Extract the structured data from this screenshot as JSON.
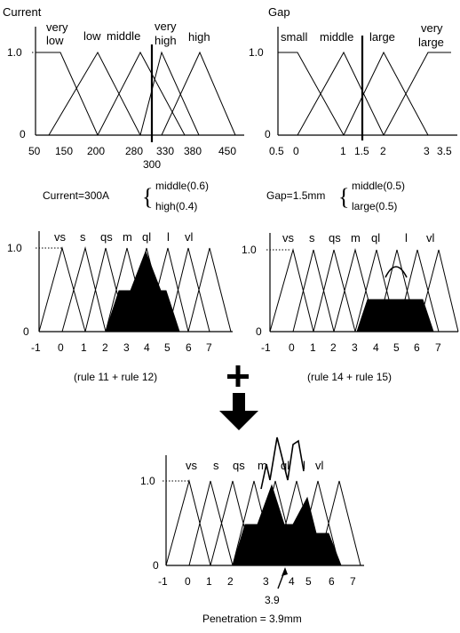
{
  "current_chart": {
    "title": "Current",
    "y_ticks": [
      "1.0",
      "0"
    ],
    "x_ticks": [
      "50",
      "150",
      "200",
      "280",
      "330",
      "380",
      "450"
    ],
    "x_extra_tick": "300",
    "terms": [
      "very low",
      "low",
      "middle",
      "very high",
      "high"
    ],
    "input_value": 300
  },
  "gap_chart": {
    "title": "Gap",
    "y_ticks": [
      "1.0",
      "0"
    ],
    "x_ticks": [
      "0.5",
      "0",
      "1",
      "1.5",
      "2",
      "3",
      "3.5"
    ],
    "terms": [
      "small",
      "middle",
      "large",
      "very large"
    ],
    "input_value": 1.5
  },
  "current_formula": {
    "lhs": "Current=300A",
    "line1": "middle(0.6)",
    "line2": "high(0.4)"
  },
  "gap_formula": {
    "lhs": "Gap=1.5mm",
    "line1": "middle(0.5)",
    "line2": "large(0.5)"
  },
  "output_terms": [
    "vs",
    "s",
    "qs",
    "m",
    "ql",
    "l",
    "vl"
  ],
  "output_x_ticks": [
    "-1",
    "0",
    "1",
    "2",
    "3",
    "4",
    "5",
    "6",
    "7"
  ],
  "output_y_ticks": [
    "1.0",
    "0"
  ],
  "left_output": {
    "caption": "(rule 11 + rule 12)",
    "clip_levels": [
      {
        "term": "m",
        "level": 0.6
      },
      {
        "term": "ql",
        "level": 0.4
      }
    ]
  },
  "right_output": {
    "caption": "(rule 14 + rule 15)",
    "clip_levels": [
      {
        "term": "ql",
        "level": 0.5
      },
      {
        "term": "l",
        "level": 0.5
      }
    ]
  },
  "combine_symbol": "+",
  "final_output": {
    "value_label": "3.9",
    "result": "Penetration = 3.9mm"
  },
  "colors": {
    "ink": "#000000",
    "background": "#ffffff"
  }
}
